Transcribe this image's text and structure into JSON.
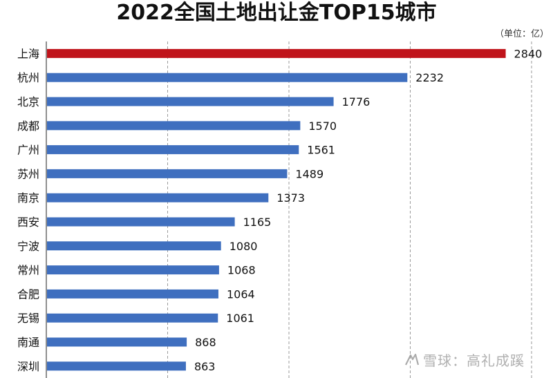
{
  "chart_data": {
    "type": "bar",
    "orientation": "horizontal",
    "title": "2022全国土地出让金TOP15城市",
    "unit_label": "（单位：亿）",
    "categories": [
      "上海",
      "杭州",
      "北京",
      "成都",
      "广州",
      "苏州",
      "南京",
      "西安",
      "宁波",
      "常州",
      "合肥",
      "无锡",
      "南通",
      "深圳"
    ],
    "values": [
      2840,
      2232,
      1776,
      1570,
      1561,
      1489,
      1373,
      1165,
      1080,
      1068,
      1064,
      1061,
      868,
      863
    ],
    "xlim": [
      0,
      3000
    ],
    "grid": "vertical dashed",
    "highlight_index": 0,
    "colors": {
      "highlight": "#c0141b",
      "bar": "#3f6fbf",
      "grid": "#9a9a9a",
      "axis": "#444444"
    }
  },
  "watermark": {
    "text": "雪球：高礼成蹊",
    "icon": "snowball-logo-icon"
  }
}
